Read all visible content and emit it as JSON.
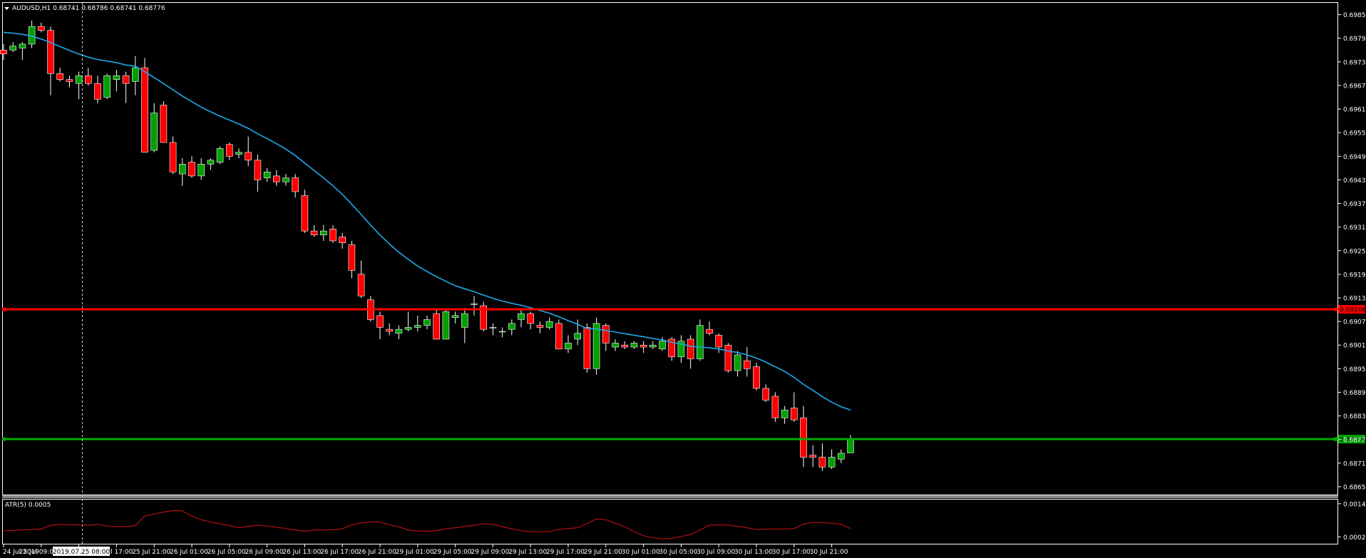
{
  "header": {
    "menu_icon": "dropdown-triangle-icon",
    "symbol_info": "AUDUSD,H1  0.68741 0.68786 0.68741 0.68776"
  },
  "crosshair_label": "2019.07.25 08:00",
  "colors": {
    "background": "#000000",
    "frame": "#ffffff",
    "bull": "#00a000",
    "bear": "#ff0000",
    "ma": "#1ea8ec",
    "level": "#ff0000",
    "support": "#00aa00",
    "atr": "#b01010",
    "separator": "#808080"
  },
  "chart_data": [
    {
      "type": "candlestick",
      "symbol": "AUDUSD",
      "timeframe": "H1",
      "ylim": [
        0.68635,
        0.69885
      ],
      "y_ticks": [
        "0.69855",
        "0.69795",
        "0.69735",
        "0.69675",
        "0.69615",
        "0.69555",
        "0.69495",
        "0.69435",
        "0.69375",
        "0.69315",
        "0.69255",
        "0.69195",
        "0.69135",
        "0.69075",
        "0.69015",
        "0.68955",
        "0.68895",
        "0.68835",
        "0.68775",
        "0.68715",
        "0.68655"
      ],
      "x_ticks": [
        "24 Jul 2019",
        "25 Jul 09:00",
        "25 Jul 13:00",
        "25 Jul 17:00",
        "25 Jul 21:00",
        "26 Jul 01:00",
        "26 Jul 05:00",
        "26 Jul 09:00",
        "26 Jul 13:00",
        "26 Jul 17:00",
        "26 Jul 21:00",
        "29 Jul 01:00",
        "29 Jul 05:00",
        "29 Jul 09:00",
        "29 Jul 13:00",
        "29 Jul 17:00",
        "29 Jul 21:00",
        "30 Jul 01:00",
        "30 Jul 05:00",
        "30 Jul 09:00",
        "30 Jul 13:00",
        "30 Jul 17:00",
        "30 Jul 21:00"
      ],
      "ohlc": [
        [
          0.69765,
          0.6978,
          0.6974,
          0.69755
        ],
        [
          0.69765,
          0.69785,
          0.6976,
          0.69775
        ],
        [
          0.6977,
          0.69785,
          0.6974,
          0.6978
        ],
        [
          0.6978,
          0.6984,
          0.6977,
          0.69825
        ],
        [
          0.69825,
          0.69835,
          0.6981,
          0.69815
        ],
        [
          0.69815,
          0.69825,
          0.6965,
          0.69705
        ],
        [
          0.69705,
          0.6972,
          0.69685,
          0.6969
        ],
        [
          0.6969,
          0.697,
          0.6967,
          0.69685
        ],
        [
          0.6968,
          0.6971,
          0.6964,
          0.697
        ],
        [
          0.697,
          0.6972,
          0.69675,
          0.6968
        ],
        [
          0.6968,
          0.697,
          0.6963,
          0.6964
        ],
        [
          0.69645,
          0.69705,
          0.6964,
          0.697
        ],
        [
          0.6969,
          0.69715,
          0.6966,
          0.697
        ],
        [
          0.697,
          0.6971,
          0.6963,
          0.6968
        ],
        [
          0.69685,
          0.6975,
          0.6965,
          0.6972
        ],
        [
          0.6972,
          0.69745,
          0.69505,
          0.69505
        ],
        [
          0.6951,
          0.6963,
          0.69505,
          0.69605
        ],
        [
          0.69625,
          0.69635,
          0.6953,
          0.6953
        ],
        [
          0.6953,
          0.69545,
          0.6945,
          0.69455
        ],
        [
          0.6945,
          0.6949,
          0.6942,
          0.69475
        ],
        [
          0.6948,
          0.69495,
          0.6944,
          0.69445
        ],
        [
          0.69445,
          0.6949,
          0.69435,
          0.69475
        ],
        [
          0.69475,
          0.6949,
          0.6946,
          0.69485
        ],
        [
          0.6948,
          0.6952,
          0.69475,
          0.69515
        ],
        [
          0.69525,
          0.6953,
          0.69485,
          0.69495
        ],
        [
          0.695,
          0.69515,
          0.6949,
          0.69505
        ],
        [
          0.69505,
          0.69545,
          0.6947,
          0.69485
        ],
        [
          0.69485,
          0.695,
          0.69405,
          0.69435
        ],
        [
          0.6944,
          0.69465,
          0.6943,
          0.69455
        ],
        [
          0.69445,
          0.6946,
          0.6942,
          0.6943
        ],
        [
          0.6943,
          0.6945,
          0.6942,
          0.6944
        ],
        [
          0.6944,
          0.6945,
          0.6939,
          0.69405
        ],
        [
          0.69395,
          0.6941,
          0.693,
          0.69305
        ],
        [
          0.69305,
          0.6932,
          0.6929,
          0.69295
        ],
        [
          0.69295,
          0.6932,
          0.6928,
          0.69305
        ],
        [
          0.6931,
          0.6932,
          0.69275,
          0.6928
        ],
        [
          0.6929,
          0.693,
          0.6926,
          0.69275
        ],
        [
          0.6927,
          0.6928,
          0.69185,
          0.69205
        ],
        [
          0.69195,
          0.6923,
          0.69135,
          0.6914
        ],
        [
          0.6913,
          0.6914,
          0.69075,
          0.6908
        ],
        [
          0.6909,
          0.691,
          0.6903,
          0.6906
        ],
        [
          0.69055,
          0.6907,
          0.6904,
          0.6905
        ],
        [
          0.69045,
          0.69065,
          0.6903,
          0.69055
        ],
        [
          0.69055,
          0.691,
          0.6905,
          0.6906
        ],
        [
          0.6906,
          0.6909,
          0.6905,
          0.69065
        ],
        [
          0.69065,
          0.6909,
          0.69055,
          0.6908
        ],
        [
          0.69095,
          0.69105,
          0.6903,
          0.6903
        ],
        [
          0.6903,
          0.69105,
          0.6903,
          0.691
        ],
        [
          0.69085,
          0.691,
          0.6907,
          0.6909
        ],
        [
          0.6906,
          0.6911,
          0.6902,
          0.69095
        ],
        [
          0.6912,
          0.6914,
          0.6909,
          0.6912
        ],
        [
          0.69115,
          0.69125,
          0.6905,
          0.69055
        ],
        [
          0.6906,
          0.6907,
          0.6904,
          0.6906
        ],
        [
          0.6905,
          0.6906,
          0.69035,
          0.6905
        ],
        [
          0.69055,
          0.6908,
          0.6904,
          0.6907
        ],
        [
          0.6908,
          0.69105,
          0.6906,
          0.69095
        ],
        [
          0.69095,
          0.691,
          0.69055,
          0.6907
        ],
        [
          0.69065,
          0.69075,
          0.69045,
          0.6906
        ],
        [
          0.6906,
          0.69085,
          0.69055,
          0.69075
        ],
        [
          0.6907,
          0.6908,
          0.69005,
          0.69005
        ],
        [
          0.69005,
          0.6904,
          0.68995,
          0.6902
        ],
        [
          0.6903,
          0.6908,
          0.69015,
          0.69045
        ],
        [
          0.6906,
          0.6907,
          0.68945,
          0.68955
        ],
        [
          0.68955,
          0.69085,
          0.6894,
          0.6907
        ],
        [
          0.69065,
          0.6907,
          0.69,
          0.6902
        ],
        [
          0.6901,
          0.6903,
          0.69,
          0.6902
        ],
        [
          0.69015,
          0.69025,
          0.69005,
          0.6901
        ],
        [
          0.6901,
          0.69025,
          0.69005,
          0.6902
        ],
        [
          0.69015,
          0.69025,
          0.68995,
          0.6901
        ],
        [
          0.6901,
          0.69025,
          0.69005,
          0.69015
        ],
        [
          0.69005,
          0.69035,
          0.69,
          0.69025
        ],
        [
          0.6903,
          0.69035,
          0.68975,
          0.68985
        ],
        [
          0.68985,
          0.6904,
          0.6897,
          0.69025
        ],
        [
          0.6903,
          0.6904,
          0.68955,
          0.6898
        ],
        [
          0.6898,
          0.6908,
          0.68975,
          0.69065
        ],
        [
          0.69055,
          0.69075,
          0.6904,
          0.69045
        ],
        [
          0.6904,
          0.69045,
          0.68995,
          0.6901
        ],
        [
          0.69015,
          0.6902,
          0.68945,
          0.6895
        ],
        [
          0.6895,
          0.69,
          0.68935,
          0.6899
        ],
        [
          0.68975,
          0.6901,
          0.68935,
          0.68955
        ],
        [
          0.6896,
          0.6897,
          0.689,
          0.68905
        ],
        [
          0.68905,
          0.68915,
          0.6887,
          0.68875
        ],
        [
          0.68885,
          0.68895,
          0.6882,
          0.6883
        ],
        [
          0.6883,
          0.6886,
          0.68815,
          0.6885
        ],
        [
          0.68855,
          0.68895,
          0.6882,
          0.68825
        ],
        [
          0.6883,
          0.6886,
          0.68705,
          0.6873
        ],
        [
          0.68735,
          0.6876,
          0.68705,
          0.6873
        ],
        [
          0.6873,
          0.68765,
          0.68695,
          0.68705
        ],
        [
          0.68705,
          0.6875,
          0.687,
          0.6873
        ],
        [
          0.68725,
          0.6875,
          0.68715,
          0.6874
        ],
        [
          0.68741,
          0.68786,
          0.68741,
          0.68776
        ]
      ],
      "ma_series": [
        0.6981,
        0.69808,
        0.69805,
        0.698,
        0.69793,
        0.69784,
        0.69774,
        0.69764,
        0.69755,
        0.69747,
        0.69741,
        0.69737,
        0.69733,
        0.69727,
        0.69724,
        0.6971,
        0.69695,
        0.6968,
        0.69664,
        0.69648,
        0.69634,
        0.6962,
        0.69608,
        0.69597,
        0.69587,
        0.69577,
        0.69566,
        0.69552,
        0.6954,
        0.69527,
        0.69513,
        0.69497,
        0.69478,
        0.69459,
        0.6944,
        0.6942,
        0.69398,
        0.69373,
        0.69347,
        0.6932,
        0.69295,
        0.69272,
        0.69251,
        0.69233,
        0.69216,
        0.69202,
        0.69189,
        0.69177,
        0.69166,
        0.69158,
        0.69151,
        0.69142,
        0.69134,
        0.69127,
        0.69121,
        0.69116,
        0.6911,
        0.69103,
        0.69096,
        0.69087,
        0.69077,
        0.69068,
        0.69057,
        0.69056,
        0.69052,
        0.69048,
        0.69044,
        0.6904,
        0.69036,
        0.69032,
        0.69028,
        0.69022,
        0.69018,
        0.69012,
        0.6901,
        0.69008,
        0.69005,
        0.69,
        0.68996,
        0.6899,
        0.68982,
        0.68972,
        0.6896,
        0.68948,
        0.68933,
        0.68915,
        0.689,
        0.68884,
        0.6887,
        0.68858,
        0.6885
      ],
      "horizontal_levels": [
        {
          "price": 0.69106,
          "color": "#ff0000",
          "label": "0.69106"
        },
        {
          "price": 0.68776,
          "color": "#00aa00",
          "label": "0.68776"
        }
      ],
      "current_price": "0.68776"
    },
    {
      "type": "line",
      "name": "ATR(5) 0.0005",
      "ylim": [
        0.0,
        0.0015
      ],
      "y_ticks": [
        "0.0014",
        "0.0002"
      ],
      "values": [
        0.00042,
        0.00043,
        0.00045,
        0.00047,
        0.00048,
        0.00062,
        0.00065,
        0.00064,
        0.00063,
        0.00062,
        0.00065,
        0.00059,
        0.00057,
        0.00057,
        0.00061,
        0.00095,
        0.00103,
        0.0011,
        0.00115,
        0.00114,
        0.00095,
        0.00082,
        0.00074,
        0.00067,
        0.00061,
        0.00053,
        0.00058,
        0.00062,
        0.00059,
        0.00055,
        0.0005,
        0.00045,
        0.0004,
        0.00044,
        0.00045,
        0.00046,
        0.00049,
        0.00063,
        0.0007,
        0.00074,
        0.00073,
        0.00064,
        0.00056,
        0.00045,
        0.00041,
        0.0004,
        0.00043,
        0.00049,
        0.00053,
        0.00058,
        0.00061,
        0.00068,
        0.00065,
        0.00057,
        0.00049,
        0.00042,
        0.00039,
        0.00038,
        0.00039,
        0.00047,
        0.0005,
        0.00053,
        0.00068,
        0.00085,
        0.00082,
        0.00069,
        0.00057,
        0.00039,
        0.00024,
        0.00016,
        0.00013,
        0.00014,
        0.00021,
        0.00029,
        0.00045,
        0.00062,
        0.00063,
        0.00062,
        0.00058,
        0.00053,
        0.00046,
        0.00048,
        0.00048,
        0.00048,
        0.0005,
        0.00066,
        0.00072,
        0.00072,
        0.00069,
        0.00066,
        0.0005
      ]
    }
  ]
}
